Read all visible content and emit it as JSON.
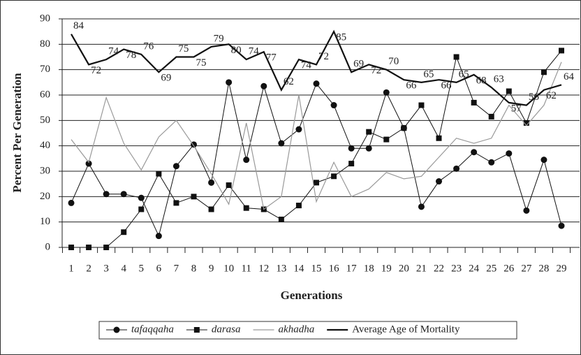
{
  "chart_data": {
    "type": "line",
    "xlabel": "Generations",
    "ylabel": "Percent Per Generation",
    "categories": [
      "1",
      "2",
      "3",
      "4",
      "5",
      "6",
      "7",
      "8",
      "9",
      "10",
      "11",
      "12",
      "13",
      "14",
      "15",
      "16",
      "17",
      "18",
      "19",
      "20",
      "21",
      "22",
      "23",
      "24",
      "25",
      "26",
      "27",
      "28",
      "29"
    ],
    "ylim": [
      0,
      90
    ],
    "yticks": [
      0,
      10,
      20,
      30,
      40,
      50,
      60,
      70,
      80,
      90
    ],
    "grid": true,
    "legend": "bottom",
    "series": [
      {
        "name": "tafaqqaha",
        "color": "#111111",
        "marker": "circle",
        "width": 1,
        "values": [
          17.5,
          33,
          21,
          21,
          19.5,
          4.5,
          32,
          40.5,
          25.5,
          65,
          34.5,
          63.5,
          41,
          46.5,
          64.5,
          56,
          39,
          39,
          61,
          47,
          16,
          26,
          31,
          37.5,
          33.5,
          37,
          14.5,
          34.5,
          8.5
        ]
      },
      {
        "name": "darasa",
        "color": "#111111",
        "marker": "square",
        "width": 1,
        "values": [
          0,
          0,
          0,
          6,
          15,
          29,
          17.5,
          20,
          15,
          24.5,
          15.5,
          15,
          11,
          16.5,
          25.5,
          28,
          33,
          45.5,
          42.5,
          47,
          56,
          43,
          75,
          57,
          51.5,
          61.5,
          49,
          69,
          77.5
        ]
      },
      {
        "name": "akhadha",
        "color": "#999999",
        "marker": "none",
        "width": 1.2,
        "values": [
          42.5,
          33.5,
          59,
          41,
          30.5,
          43.5,
          50,
          40,
          29,
          17,
          49,
          15,
          20,
          60,
          18,
          33.5,
          20,
          23,
          29.5,
          27,
          28,
          35.5,
          43,
          41,
          43,
          56,
          48,
          56,
          73
        ]
      },
      {
        "name": "Average Age of Mortality",
        "color": "#111111",
        "marker": "none",
        "width": 2.2,
        "data_labels": true,
        "values": [
          84,
          72,
          74,
          78,
          76,
          69,
          75,
          75,
          79,
          80,
          74,
          77,
          62,
          74,
          72,
          85,
          69,
          72,
          70,
          66,
          65,
          66,
          65,
          68,
          63,
          57,
          56,
          62,
          64
        ]
      }
    ]
  }
}
